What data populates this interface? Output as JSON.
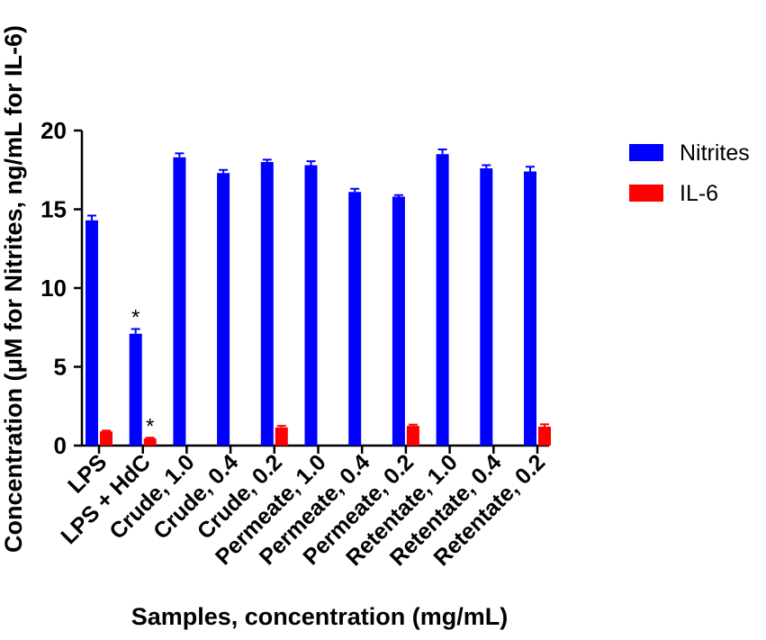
{
  "chart_data": {
    "type": "bar",
    "title": "",
    "xlabel": "Samples, concentration (mg/mL)",
    "ylabel": "Concentration (μM for Nitrites, ng/mL for IL-6)",
    "ylim": [
      0,
      20
    ],
    "yticks": [
      0,
      5,
      10,
      15,
      20
    ],
    "grid": false,
    "legend_position": "right",
    "categories": [
      "LPS",
      "LPS + HdC",
      "Crude, 1.0",
      "Crude, 0.4",
      "Crude, 0.2",
      "Permeate, 1.0",
      "Permeate, 0.4",
      "Permeate, 0.2",
      "Retentate, 1.0",
      "Retentate, 0.4",
      "Retentate, 0.2"
    ],
    "series": [
      {
        "name": "Nitrites",
        "color": "#0000ff",
        "values": [
          14.3,
          7.1,
          18.3,
          17.3,
          18.0,
          17.8,
          16.1,
          15.8,
          18.5,
          17.6,
          17.4
        ],
        "errors": [
          0.3,
          0.3,
          0.25,
          0.2,
          0.15,
          0.25,
          0.2,
          0.1,
          0.3,
          0.2,
          0.3
        ]
      },
      {
        "name": "IL-6",
        "color": "#ff0000",
        "values": [
          0.9,
          0.45,
          0,
          0,
          1.15,
          0,
          0,
          1.25,
          0,
          0,
          1.2
        ],
        "errors": [
          0.05,
          0.05,
          0,
          0,
          0.1,
          0,
          0,
          0.08,
          0,
          0,
          0.15
        ]
      }
    ],
    "annotations": [
      {
        "text": "*",
        "category_index": 1,
        "series_index": 0
      },
      {
        "text": "*",
        "category_index": 1,
        "series_index": 1
      }
    ]
  }
}
